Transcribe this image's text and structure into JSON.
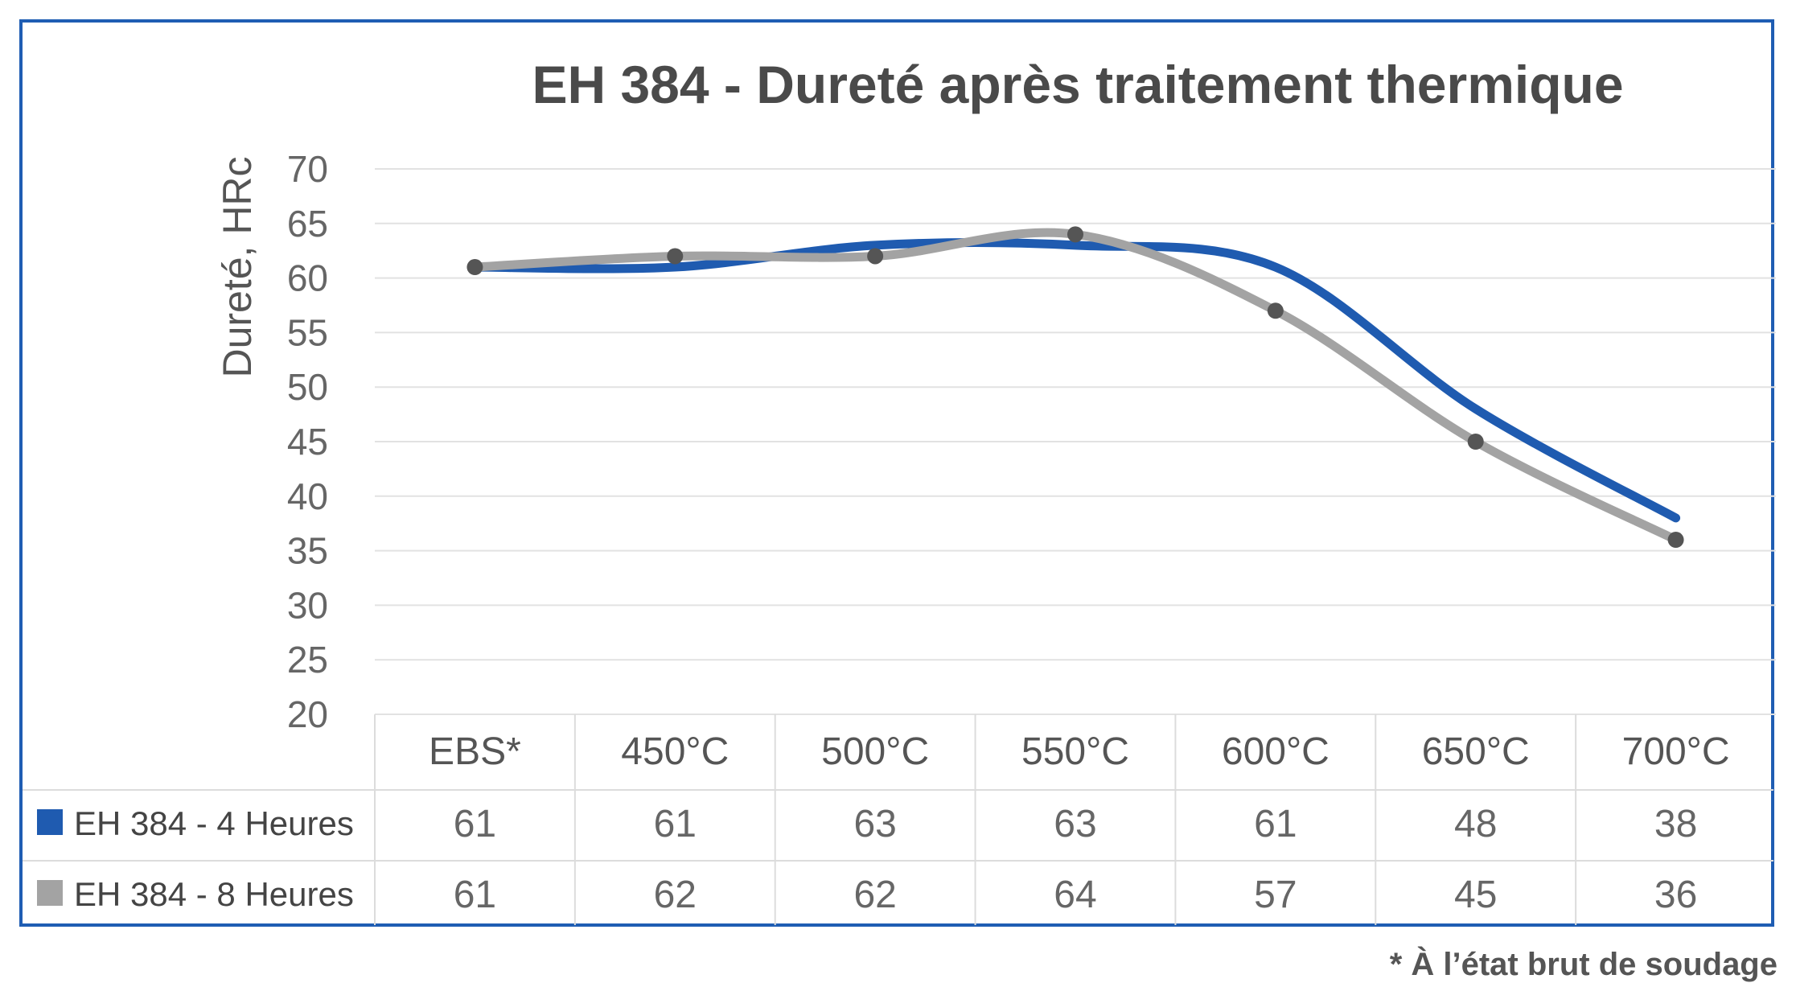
{
  "chart_data": {
    "type": "line",
    "title": "EH 384 - Dureté après traitement thermique",
    "ylabel": "Dureté, HRc",
    "xlabel": "",
    "ylim": [
      20,
      70
    ],
    "ytick_step": 5,
    "yticks": [
      "20",
      "25",
      "30",
      "35",
      "40",
      "45",
      "50",
      "55",
      "60",
      "65",
      "70"
    ],
    "grid": true,
    "categories": [
      "EBS*",
      "450°C",
      "500°C",
      "550°C",
      "600°C",
      "650°C",
      "700°C"
    ],
    "series": [
      {
        "name": "EH 384 - 4 Heures",
        "color": "#1f5bb0",
        "values": [
          61,
          61,
          63,
          63,
          61,
          48,
          38
        ],
        "markers": false
      },
      {
        "name": "EH 384 - 8 Heures",
        "color": "#a3a3a3",
        "values": [
          61,
          62,
          62,
          64,
          57,
          45,
          36
        ],
        "markers": true
      }
    ],
    "table": {
      "rows": [
        {
          "cells": [
            "61",
            "61",
            "63",
            "63",
            "61",
            "48",
            "38"
          ]
        },
        {
          "cells": [
            "61",
            "62",
            "62",
            "64",
            "57",
            "45",
            "36"
          ]
        }
      ]
    },
    "marker_color": "#555555",
    "footnote": "* À l’état brut de soudage"
  }
}
